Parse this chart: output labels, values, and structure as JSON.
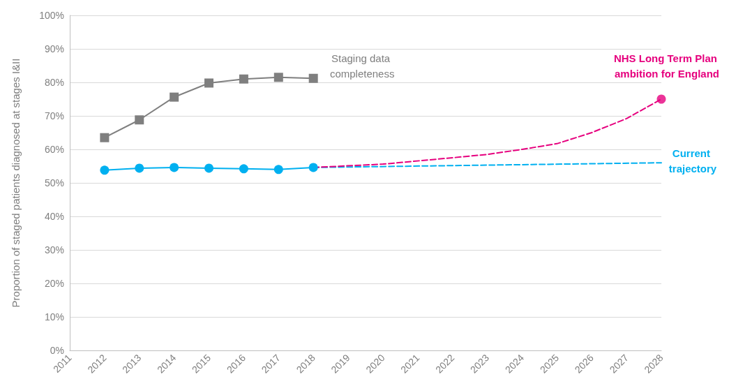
{
  "chart_data": {
    "type": "line",
    "ylabel": "Proportion of staged patients diagnosed at stages I&II",
    "xlim": [
      2011,
      2028
    ],
    "xticks": [
      2011,
      2012,
      2013,
      2014,
      2015,
      2016,
      2017,
      2018,
      2019,
      2020,
      2021,
      2022,
      2023,
      2024,
      2025,
      2026,
      2027,
      2028
    ],
    "ylim": [
      0,
      100
    ],
    "yticks": [
      {
        "value": 0,
        "label": "0%"
      },
      {
        "value": 10,
        "label": "10%"
      },
      {
        "value": 20,
        "label": "20%"
      },
      {
        "value": 30,
        "label": "30%"
      },
      {
        "value": 40,
        "label": "40%"
      },
      {
        "value": 50,
        "label": "50%"
      },
      {
        "value": 60,
        "label": "60%"
      },
      {
        "value": 70,
        "label": "70%"
      },
      {
        "value": 80,
        "label": "80%"
      },
      {
        "value": 90,
        "label": "90%"
      },
      {
        "value": 100,
        "label": "100%"
      }
    ],
    "grid": "y",
    "series": [
      {
        "name": "Staging data completeness",
        "color": "#7f7f7f",
        "marker": "square",
        "line_style": "solid",
        "x": [
          2012,
          2013,
          2014,
          2015,
          2016,
          2017,
          2018
        ],
        "values": [
          63.5,
          68.8,
          75.6,
          79.8,
          81,
          81.5,
          81.2
        ]
      },
      {
        "color": "#00b0f0",
        "marker": "circle",
        "line_style": "solid",
        "x": [
          2012,
          2013,
          2014,
          2015,
          2016,
          2017,
          2018
        ],
        "values": [
          53.8,
          54.4,
          54.6,
          54.4,
          54.2,
          54,
          54.6
        ]
      },
      {
        "name": "Current trajectory",
        "color": "#00b0f0",
        "marker": "none",
        "line_style": "dashed",
        "x": [
          2018,
          2028
        ],
        "values": [
          54.6,
          56
        ]
      },
      {
        "name": "NHS Long Term Plan ambition for England",
        "color": "#e6007e",
        "marker": "none",
        "line_style": "dashed",
        "x": [
          2018,
          2020,
          2022,
          2023,
          2024,
          2025,
          2026,
          2027,
          2028
        ],
        "values": [
          54.6,
          55.6,
          57.5,
          58.5,
          60,
          61.7,
          65,
          69.2,
          75
        ]
      },
      {
        "type": "scatter",
        "color": "#e6007e",
        "marker": "circle",
        "x": [
          2028
        ],
        "values": [
          75
        ]
      }
    ]
  }
}
